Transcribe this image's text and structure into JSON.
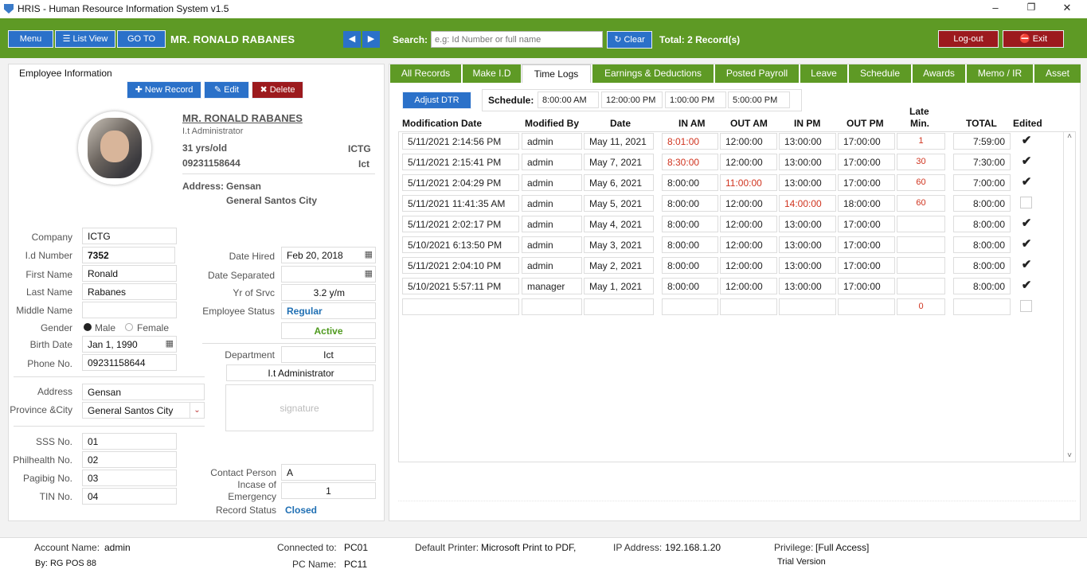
{
  "window": {
    "title": "HRIS - Human Resource Information System v1.5"
  },
  "toolbar": {
    "menu": "Menu",
    "list_view": "List View",
    "goto": "GO TO",
    "employee_heading": "MR. RONALD  RABANES",
    "search_label": "Search:",
    "search_placeholder": "e.g: Id Number or full name",
    "clear": "Clear",
    "total": "Total: 2 Record(s)",
    "logout": "Log-out",
    "exit": "Exit"
  },
  "employee": {
    "section_title": "Employee Information",
    "new_record": "New Record",
    "edit": "Edit",
    "delete": "Delete",
    "name": "MR. RONALD  RABANES",
    "position": "I.t Administrator",
    "age": "31 yrs/old",
    "company_short": "ICTG",
    "phone_header": "09231158644",
    "dept_short": "Ict",
    "address_label": "Address:",
    "address_line1": "Gensan",
    "address_line2": "General Santos City",
    "fields": {
      "company_label": "Company",
      "company": "ICTG",
      "id_label": "I.d Number",
      "id": "7352",
      "first_label": "First Name",
      "first": "Ronald",
      "last_label": "Last Name",
      "last": "Rabanes",
      "middle_label": "Middle Name",
      "middle": "",
      "gender_label": "Gender",
      "male": "Male",
      "female": "Female",
      "birth_label": "Birth Date",
      "birth": "Jan 1, 1990",
      "phone_label": "Phone No.",
      "phone": "09231158644",
      "address_label": "Address",
      "address": "Gensan",
      "province_label": "Province &City",
      "province": "General Santos City",
      "sss_label": "SSS No.",
      "sss": "01",
      "philhealth_label": "Philhealth No.",
      "philhealth": "02",
      "pagibig_label": "Pagibig No.",
      "pagibig": "03",
      "tin_label": "TIN No.",
      "tin": "04",
      "hired_label": "Date Hired",
      "hired": "Feb 20, 2018",
      "separated_label": "Date Separated",
      "separated": "",
      "service_label": "Yr of Srvc",
      "service": "3.2 y/m",
      "status_label": "Employee Status",
      "status": "Regular",
      "active": "Active",
      "department_label": "Department",
      "department": "Ict",
      "position_field": "I.t Administrator",
      "signature": "signature",
      "contact_label": "Contact Person",
      "contact": "A",
      "emergency_label1": "Incase of",
      "emergency_label2": "Emergency",
      "emergency": "1",
      "record_status_label": "Record Status",
      "record_status": "Closed"
    }
  },
  "tabs": [
    "All Records",
    "Make I.D",
    "Time Logs",
    "Earnings & Deductions",
    "Posted Payroll",
    "Leave",
    "Schedule",
    "Awards",
    "Memo / IR",
    "Asset"
  ],
  "active_tab": "Time Logs",
  "timelogs": {
    "adjust": "Adjust DTR",
    "schedule_label": "Schedule:",
    "schedule": [
      "8:00:00 AM",
      "12:00:00 PM",
      "1:00:00 PM",
      "5:00:00 PM"
    ],
    "headers": {
      "mod_date": "Modification Date",
      "mod_by": "Modified By",
      "date": "Date",
      "in_am": "IN AM",
      "out_am": "OUT AM",
      "in_pm": "IN PM",
      "out_pm": "OUT PM",
      "late1": "Late",
      "late2": "Min.",
      "total": "TOTAL",
      "edited": "Edited"
    },
    "rows": [
      {
        "mod": "5/11/2021 2:14:56 PM",
        "by": "admin",
        "date": "May 11, 2021",
        "in_am": "8:01:00",
        "out_am": "12:00:00",
        "in_pm": "13:00:00",
        "out_pm": "17:00:00",
        "late": "1",
        "total": "7:59:00",
        "edited": true,
        "red": [
          "in_am"
        ]
      },
      {
        "mod": "5/11/2021 2:15:41 PM",
        "by": "admin",
        "date": "May 7, 2021",
        "in_am": "8:30:00",
        "out_am": "12:00:00",
        "in_pm": "13:00:00",
        "out_pm": "17:00:00",
        "late": "30",
        "total": "7:30:00",
        "edited": true,
        "red": [
          "in_am"
        ]
      },
      {
        "mod": "5/11/2021 2:04:29 PM",
        "by": "admin",
        "date": "May 6, 2021",
        "in_am": "8:00:00",
        "out_am": "11:00:00",
        "in_pm": "13:00:00",
        "out_pm": "17:00:00",
        "late": "60",
        "total": "7:00:00",
        "edited": true,
        "red": [
          "out_am"
        ]
      },
      {
        "mod": "5/11/2021 11:41:35 AM",
        "by": "admin",
        "date": "May 5, 2021",
        "in_am": "8:00:00",
        "out_am": "12:00:00",
        "in_pm": "14:00:00",
        "out_pm": "18:00:00",
        "late": "60",
        "total": "8:00:00",
        "edited": false,
        "red": [
          "in_pm"
        ]
      },
      {
        "mod": "5/11/2021 2:02:17 PM",
        "by": "admin",
        "date": "May 4, 2021",
        "in_am": "8:00:00",
        "out_am": "12:00:00",
        "in_pm": "13:00:00",
        "out_pm": "17:00:00",
        "late": "",
        "total": "8:00:00",
        "edited": true,
        "red": []
      },
      {
        "mod": "5/10/2021 6:13:50 PM",
        "by": "admin",
        "date": "May 3, 2021",
        "in_am": "8:00:00",
        "out_am": "12:00:00",
        "in_pm": "13:00:00",
        "out_pm": "17:00:00",
        "late": "",
        "total": "8:00:00",
        "edited": true,
        "red": []
      },
      {
        "mod": "5/11/2021 2:04:10 PM",
        "by": "admin",
        "date": "May 2, 2021",
        "in_am": "8:00:00",
        "out_am": "12:00:00",
        "in_pm": "13:00:00",
        "out_pm": "17:00:00",
        "late": "",
        "total": "8:00:00",
        "edited": true,
        "red": []
      },
      {
        "mod": "5/10/2021 5:57:11 PM",
        "by": "manager",
        "date": "May 1, 2021",
        "in_am": "8:00:00",
        "out_am": "12:00:00",
        "in_pm": "13:00:00",
        "out_pm": "17:00:00",
        "late": "",
        "total": "8:00:00",
        "edited": true,
        "red": []
      },
      {
        "mod": "",
        "by": "",
        "date": "",
        "in_am": "",
        "out_am": "",
        "in_pm": "",
        "out_pm": "",
        "late": "0",
        "total": "",
        "edited": false,
        "red": []
      }
    ]
  },
  "status": {
    "account_label": "Account Name:",
    "account": "admin",
    "by": "By: RG POS 88",
    "connected_label": "Connected to:",
    "connected": "PC01",
    "pcname_label": "PC Name:",
    "pcname": "PC11",
    "printer_label": "Default Printer:",
    "printer": "Microsoft Print to PDF,",
    "ip_label": "IP Address:",
    "ip": "192.168.1.20",
    "privilege_label": "Privilege:",
    "privilege": "[Full Access]",
    "trial": "Trial Version"
  },
  "colors": {
    "toolbar": "#5e9a25",
    "button": "#2b71c9",
    "danger": "#9c1a1e",
    "late": "#d0341f",
    "status_blue": "#1f6fb3",
    "active_green": "#4f9a1f"
  }
}
